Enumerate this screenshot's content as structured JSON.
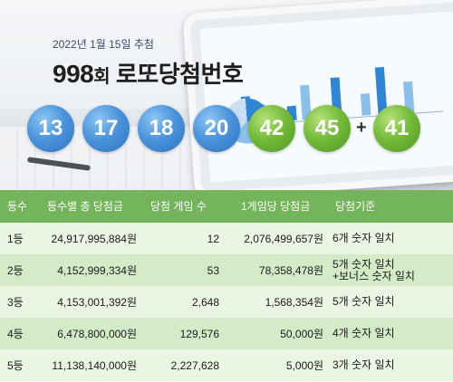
{
  "header": {
    "draw_date": "2022년 1월 15일 추첨",
    "round_number": "998",
    "round_suffix": "회",
    "title_text": "로또당첨번호"
  },
  "winning_numbers": [
    "13",
    "17",
    "18",
    "20",
    "42",
    "45"
  ],
  "ball_colors": [
    "blue",
    "blue",
    "blue",
    "blue",
    "green",
    "green"
  ],
  "plus_sign": "+",
  "bonus_number": "41",
  "colors": {
    "blue_ball": "#4b95dd",
    "green_ball": "#75bb3a",
    "table_header": "#74b45a",
    "row_dark": "#d4ebc8",
    "row_light": "#ebf5e4"
  },
  "table": {
    "headers": [
      "등수",
      "등수별 총 당첨금",
      "당첨 게임 수",
      "1게임당 당첨금",
      "당첨기준"
    ],
    "rows": [
      {
        "rank": "1등",
        "total": "24,917,995,884원",
        "games": "12",
        "per_game": "2,076,499,657원",
        "criteria": [
          "6개 숫자 일치"
        ]
      },
      {
        "rank": "2등",
        "total": "4,152,999,334원",
        "games": "53",
        "per_game": "78,358,478원",
        "criteria": [
          "5개 숫자 일치",
          "+보너스 숫자 일치"
        ]
      },
      {
        "rank": "3등",
        "total": "4,153,001,392원",
        "games": "2,648",
        "per_game": "1,568,354원",
        "criteria": [
          "5개 숫자 일치"
        ]
      },
      {
        "rank": "4등",
        "total": "6,478,800,000원",
        "games": "129,576",
        "per_game": "50,000원",
        "criteria": [
          "4개 숫자 일치"
        ]
      },
      {
        "rank": "5등",
        "total": "11,138,140,000원",
        "games": "2,227,628",
        "per_game": "5,000원",
        "criteria": [
          "3개 숫자 일치"
        ]
      }
    ]
  }
}
